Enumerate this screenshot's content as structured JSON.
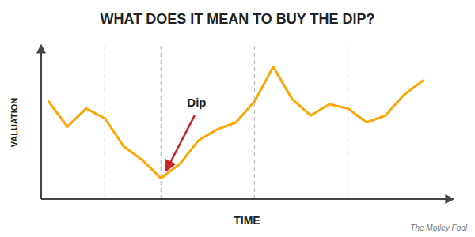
{
  "chart_data": {
    "type": "line",
    "title": "WHAT DOES IT MEAN TO BUY THE DIP?",
    "x_label": "TIME",
    "y_label": "VALUATION",
    "x": [
      0,
      0.5,
      1.0,
      1.5,
      2.0,
      2.5,
      3.0,
      3.5,
      4.0,
      4.5,
      5.0,
      5.5,
      6.0,
      6.5,
      7.0,
      7.5,
      8.0,
      8.5,
      9.0,
      9.5,
      10.0
    ],
    "values": [
      7.0,
      5.2,
      6.5,
      5.8,
      3.8,
      2.8,
      1.5,
      2.5,
      4.2,
      5.0,
      5.5,
      7.0,
      9.5,
      7.2,
      6.0,
      6.8,
      6.5,
      5.5,
      6.0,
      7.5,
      8.5
    ],
    "color": "#FFA500",
    "xlim": [
      -0.2,
      10.8
    ],
    "ylim": [
      0,
      11
    ],
    "xticks": [
      1.5,
      3.0,
      5.5,
      8.0
    ],
    "yticks": [],
    "grid": true,
    "tick_labels": false,
    "annotations": [
      {
        "text": "Dip",
        "x": 3.7,
        "y": 6.5,
        "arrow_from": [
          3.9,
          6.0
        ],
        "arrow_to": [
          3.15,
          2.1
        ],
        "color": "#CC2222"
      },
      {
        "text": "The Motley Fool"
      }
    ]
  }
}
